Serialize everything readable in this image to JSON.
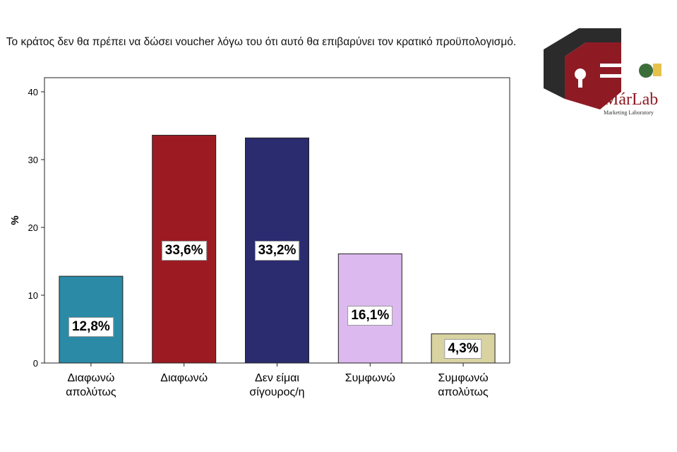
{
  "chart_data": {
    "type": "bar",
    "title": "Το κράτος δεν θα πρέπει να δώσει voucher λόγω του ότι αυτό θα επιβαρύνει τον κρατικό προϋπολογισμό.",
    "xlabel": "",
    "ylabel": "%",
    "ylim": [
      0,
      40
    ],
    "yticks": [
      0,
      10,
      20,
      30,
      40
    ],
    "categories": [
      [
        "Διαφωνώ",
        "απολύτως"
      ],
      [
        "Διαφωνώ"
      ],
      [
        "Δεν είμαι",
        "σίγουρος/η"
      ],
      [
        "Συμφωνώ"
      ],
      [
        "Συμφωνώ",
        "απολύτως"
      ]
    ],
    "values": [
      12.8,
      33.6,
      33.2,
      16.1,
      4.3
    ],
    "data_labels": [
      "12,8%",
      "33,6%",
      "33,2%",
      "16,1%",
      "4,3%"
    ],
    "colors": [
      "#2b8aa6",
      "#9c1b22",
      "#2b2b6f",
      "#dcb9ee",
      "#d9d3a2"
    ],
    "grid": false
  },
  "logo": {
    "name": "MárLab",
    "subtitle": "Marketing Laboratory"
  }
}
